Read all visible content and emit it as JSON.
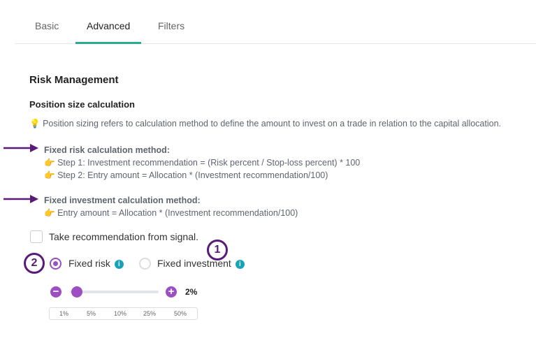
{
  "tabs": [
    {
      "label": "Basic"
    },
    {
      "label": "Advanced",
      "active": true
    },
    {
      "label": "Filters"
    }
  ],
  "section_title": "Risk Management",
  "subsection_title": "Position size calculation",
  "info_text": "Position sizing refers to calculation method to define the amount to invest on a trade in relation to the capital allocation.",
  "fixed_risk_block": {
    "title": "Fixed risk calculation method:",
    "steps": [
      "Step 1: Investment recommendation = (Risk percent / Stop-loss percent) * 100",
      "Step 2: Entry amount = Allocation * (Investment recommendation/100)"
    ]
  },
  "fixed_investment_block": {
    "title": "Fixed investment calculation method:",
    "steps": [
      "Entry amount = Allocation * (Investment recommendation/100)"
    ]
  },
  "checkbox": {
    "label": "Take recommendation from signal.",
    "checked": false
  },
  "radios": [
    {
      "label": "Fixed risk",
      "selected": true
    },
    {
      "label": "Fixed investment",
      "selected": false
    }
  ],
  "annotations": [
    "1",
    "2"
  ],
  "slider": {
    "value": 2,
    "value_label": "2%",
    "min": 1,
    "max": 50
  },
  "presets": [
    "1%",
    "5%",
    "10%",
    "25%",
    "50%"
  ],
  "colors": {
    "accent": "#9b4fc0",
    "tab_underline": "#2bab8f",
    "info": "#17a2b8",
    "annotation": "#5a1a78"
  }
}
